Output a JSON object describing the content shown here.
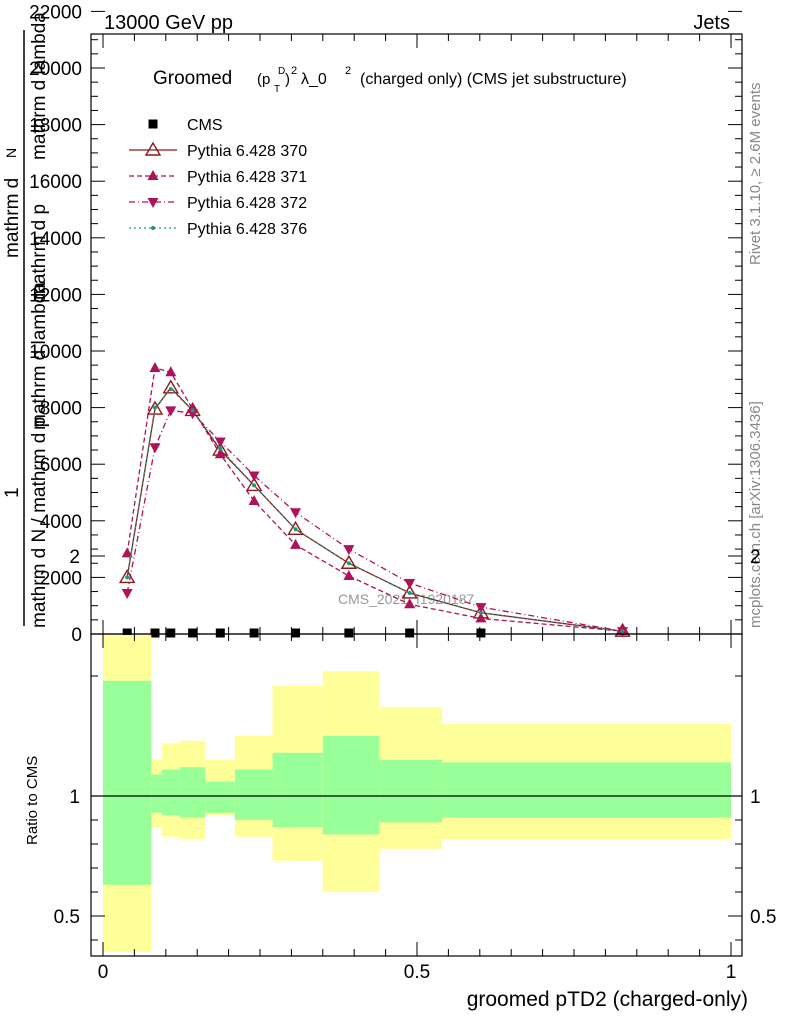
{
  "header": {
    "left": "13000 GeV pp",
    "right": "Jets"
  },
  "side_labels": {
    "rivet": "Rivet 3.1.10, ≥ 2.6M events",
    "mcplots": "mcplots.cern.ch [arXiv:1306.3436]"
  },
  "watermark": "CMS_2021_I1920187",
  "title": {
    "prefix": "Groomed",
    "middle": "λ_0",
    "suffix": "(charged only) (CMS jet substructure)"
  },
  "ylabel_main": {
    "line_a": "mathrm d",
    "line_b": "N",
    "line_c": "mathrm d p",
    "line_d": "mathrm d lambda",
    "line_e": "1",
    "line_f": "mathrm d N / mathrm d p",
    "line_g": "mathrm d lambda"
  },
  "chart_data": [
    {
      "type": "line",
      "panel": "main",
      "xlim": [
        0,
        1
      ],
      "ylim": [
        0,
        20000
      ],
      "y_ticks": [
        0,
        2000,
        4000,
        6000,
        8000,
        10000,
        12000,
        14000,
        16000,
        18000,
        20000,
        22000
      ],
      "y_tick_labels": [
        "0",
        "2000",
        "4000",
        "6000",
        "8000",
        "10000",
        "12000",
        "14000",
        "16000",
        "18000",
        "20000",
        "22000"
      ],
      "legend_position": "top-left",
      "series": [
        {
          "name": "CMS",
          "color": "#000000",
          "marker": "square",
          "x": [
            0.0385,
            0.0828,
            0.1079,
            0.1427,
            0.1868,
            0.2406,
            0.3066,
            0.3915,
            0.4883,
            0.6018
          ],
          "values": [
            5,
            5,
            5,
            5,
            5,
            5,
            5,
            5,
            5,
            5
          ]
        },
        {
          "name": "Pythia 6.428 370",
          "color": "#8b1a1a",
          "marker": "triangle-open",
          "dash": "",
          "x": [
            0.0385,
            0.0828,
            0.1079,
            0.1427,
            0.1868,
            0.2406,
            0.3066,
            0.3915,
            0.4883,
            0.6018,
            0.8273
          ],
          "values": [
            2000,
            7950,
            8700,
            7900,
            6500,
            5250,
            3700,
            2500,
            1450,
            750,
            100
          ]
        },
        {
          "name": "Pythia 6.428 371",
          "color": "#b0125a",
          "marker": "triangle-up",
          "dash": "5,3",
          "x": [
            0.0385,
            0.0828,
            0.1079,
            0.1427,
            0.1868,
            0.2406,
            0.3066,
            0.3915,
            0.4883,
            0.6018,
            0.8273
          ],
          "values": [
            2850,
            9400,
            9250,
            7950,
            6350,
            4700,
            3150,
            2050,
            1050,
            550,
            100
          ]
        },
        {
          "name": "Pythia 6.428 372",
          "color": "#b0125a",
          "marker": "triangle-down",
          "dash": "6,3,1,3",
          "x": [
            0.0385,
            0.0828,
            0.1079,
            0.1427,
            0.1868,
            0.2406,
            0.3066,
            0.3915,
            0.4883,
            0.6018,
            0.8273
          ],
          "values": [
            1450,
            6600,
            7900,
            7800,
            6800,
            5600,
            4300,
            3000,
            1800,
            950,
            100
          ]
        },
        {
          "name": "Pythia 6.428 376",
          "color": "#1a9a7a",
          "marker": "dot",
          "dash": "2,3",
          "x": [
            0.0385,
            0.0828,
            0.1079,
            0.1427,
            0.1868,
            0.2406,
            0.3066,
            0.3915,
            0.4883,
            0.6018,
            0.8273
          ],
          "values": [
            2000,
            8000,
            8650,
            7900,
            6550,
            5250,
            3700,
            2500,
            1450,
            750,
            100
          ]
        }
      ]
    },
    {
      "type": "area",
      "panel": "ratio",
      "ylabel": "Ratio to CMS",
      "xlabel": "groomed pTD2 (charged-only)",
      "xlim": [
        0,
        1
      ],
      "ylim": [
        0.35,
        2.3
      ],
      "y_ticks": [
        0.5,
        1,
        2
      ],
      "y_tick_labels": [
        "0.5",
        "1",
        "2"
      ],
      "x_ticks": [
        0,
        0.5,
        1
      ],
      "x_tick_labels": [
        "0",
        "0.5",
        "1"
      ],
      "reference": 1,
      "bins": [
        {
          "lo": 0.0,
          "hi": 0.077,
          "stat_lo": 0.63,
          "stat_hi": 1.48,
          "tot_lo": 0.35,
          "tot_hi": 1.85
        },
        {
          "lo": 0.077,
          "hi": 0.094,
          "stat_lo": 0.93,
          "stat_hi": 1.09,
          "tot_lo": 0.87,
          "tot_hi": 1.15
        },
        {
          "lo": 0.094,
          "hi": 0.122,
          "stat_lo": 0.92,
          "stat_hi": 1.11,
          "tot_lo": 0.83,
          "tot_hi": 1.22
        },
        {
          "lo": 0.122,
          "hi": 0.163,
          "stat_lo": 0.91,
          "stat_hi": 1.12,
          "tot_lo": 0.82,
          "tot_hi": 1.23
        },
        {
          "lo": 0.163,
          "hi": 0.21,
          "stat_lo": 0.93,
          "stat_hi": 1.06,
          "tot_lo": 0.92,
          "tot_hi": 1.15
        },
        {
          "lo": 0.21,
          "hi": 0.27,
          "stat_lo": 0.9,
          "stat_hi": 1.11,
          "tot_lo": 0.83,
          "tot_hi": 1.25
        },
        {
          "lo": 0.27,
          "hi": 0.35,
          "stat_lo": 0.87,
          "stat_hi": 1.18,
          "tot_lo": 0.73,
          "tot_hi": 1.46
        },
        {
          "lo": 0.35,
          "hi": 0.44,
          "stat_lo": 0.84,
          "stat_hi": 1.25,
          "tot_lo": 0.6,
          "tot_hi": 1.52
        },
        {
          "lo": 0.44,
          "hi": 0.54,
          "stat_lo": 0.89,
          "stat_hi": 1.15,
          "tot_lo": 0.78,
          "tot_hi": 1.37
        },
        {
          "lo": 0.54,
          "hi": 1.0,
          "stat_lo": 0.91,
          "stat_hi": 1.14,
          "tot_lo": 0.82,
          "tot_hi": 1.3
        }
      ]
    }
  ]
}
